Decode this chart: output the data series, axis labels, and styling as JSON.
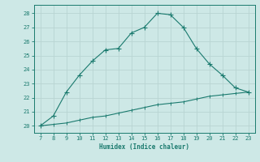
{
  "upper_x": [
    7,
    8,
    9,
    10,
    11,
    12,
    13,
    14,
    15,
    16,
    17,
    18,
    19,
    20,
    21,
    22,
    23
  ],
  "upper_y": [
    20.0,
    20.7,
    22.4,
    23.6,
    24.6,
    25.4,
    25.5,
    26.6,
    27.0,
    28.0,
    27.9,
    27.0,
    25.5,
    24.4,
    23.6,
    22.7,
    22.4
  ],
  "lower_x": [
    7,
    8,
    9,
    10,
    11,
    12,
    13,
    14,
    15,
    16,
    17,
    18,
    19,
    20,
    21,
    22,
    23
  ],
  "lower_y": [
    20.0,
    20.1,
    20.2,
    20.4,
    20.6,
    20.7,
    20.9,
    21.1,
    21.3,
    21.5,
    21.6,
    21.7,
    21.9,
    22.1,
    22.2,
    22.3,
    22.4
  ],
  "line_color": "#1a7a6e",
  "bg_color": "#cde8e6",
  "grid_color": "#b8d4d2",
  "xlabel": "Humidex (Indice chaleur)",
  "ylim": [
    19.5,
    28.6
  ],
  "xlim": [
    6.5,
    23.5
  ],
  "yticks": [
    20,
    21,
    22,
    23,
    24,
    25,
    26,
    27,
    28
  ],
  "xticks": [
    7,
    8,
    9,
    10,
    11,
    12,
    13,
    14,
    15,
    16,
    17,
    18,
    19,
    20,
    21,
    22,
    23
  ]
}
